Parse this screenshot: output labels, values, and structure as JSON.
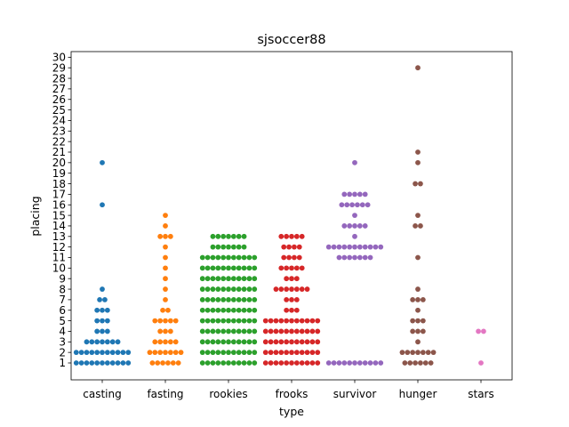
{
  "chart_data": {
    "type": "scatter",
    "subtype": "swarm",
    "title": "sjsoccer88",
    "xlabel": "type",
    "ylabel": "placing",
    "categories": [
      "casting",
      "fasting",
      "rookies",
      "frooks",
      "survivor",
      "hunger",
      "stars"
    ],
    "ylim": [
      -0.5,
      31
    ],
    "yticks": [
      1,
      2,
      3,
      4,
      5,
      6,
      7,
      8,
      9,
      10,
      11,
      12,
      13,
      14,
      15,
      16,
      17,
      18,
      19,
      20,
      21,
      22,
      23,
      24,
      25,
      26,
      27,
      28,
      29,
      30
    ],
    "grid": false,
    "legend": "none",
    "colors": [
      "#1f77b4",
      "#ff7f0e",
      "#2ca02c",
      "#d62728",
      "#9467bd",
      "#8c564b",
      "#e377c2"
    ],
    "series": [
      {
        "category": "casting",
        "counts": {
          "1": 11,
          "2": 11,
          "3": 7,
          "4": 3,
          "5": 3,
          "6": 3,
          "7": 2,
          "8": 1,
          "16": 1,
          "20": 1
        }
      },
      {
        "category": "fasting",
        "counts": {
          "1": 6,
          "2": 7,
          "3": 5,
          "4": 3,
          "5": 5,
          "6": 2,
          "7": 1,
          "8": 1,
          "9": 1,
          "10": 1,
          "11": 1,
          "12": 1,
          "13": 3,
          "14": 1,
          "15": 1
        }
      },
      {
        "category": "rookies",
        "counts": {
          "1": 11,
          "2": 11,
          "3": 11,
          "4": 11,
          "5": 11,
          "6": 11,
          "7": 11,
          "8": 11,
          "9": 11,
          "10": 11,
          "11": 11,
          "12": 7,
          "13": 7
        }
      },
      {
        "category": "frooks",
        "counts": {
          "1": 11,
          "2": 11,
          "3": 11,
          "4": 11,
          "5": 11,
          "6": 3,
          "7": 3,
          "8": 7,
          "9": 3,
          "10": 5,
          "11": 4,
          "12": 4,
          "13": 5
        }
      },
      {
        "category": "survivor",
        "counts": {
          "1": 11,
          "11": 7,
          "12": 11,
          "13": 1,
          "14": 5,
          "15": 1,
          "16": 6,
          "17": 5,
          "20": 1
        }
      },
      {
        "category": "hunger",
        "counts": {
          "1": 6,
          "2": 7,
          "3": 1,
          "4": 3,
          "5": 3,
          "6": 1,
          "7": 3,
          "8": 1,
          "11": 1,
          "14": 2,
          "15": 1,
          "18": 2,
          "20": 1,
          "21": 1,
          "29": 1
        }
      },
      {
        "category": "stars",
        "counts": {
          "1": 1,
          "4": 2
        }
      }
    ]
  }
}
